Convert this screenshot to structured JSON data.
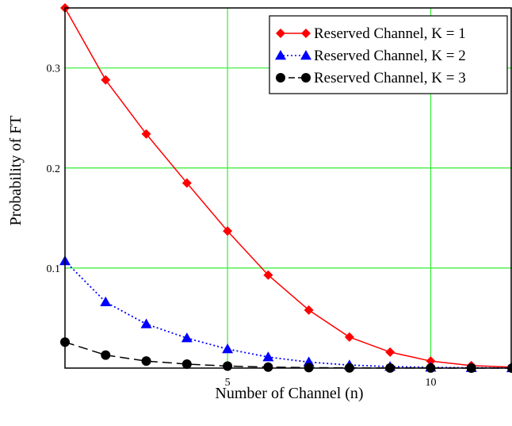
{
  "chart_data": {
    "type": "line",
    "xlabel": "Number of Channel (n)",
    "ylabel": "Probability of FT",
    "xlim": [
      1,
      12
    ],
    "ylim": [
      0,
      0.36
    ],
    "x_ticks": [
      5,
      10
    ],
    "x_tick_labels": [
      "5",
      "10"
    ],
    "y_ticks": [
      0.1,
      0.2,
      0.3
    ],
    "y_tick_labels": [
      "0.1",
      "0.2",
      "0.3"
    ],
    "grid": true,
    "grid_color": "#33ee33",
    "legend_position": "top-right",
    "x": [
      1,
      2,
      3,
      4,
      5,
      6,
      7,
      8,
      9,
      10,
      11,
      12
    ],
    "series": [
      {
        "name": "Reserved Channel, K = 1",
        "color": "#ff0000",
        "line_style": "solid",
        "marker": "diamond",
        "values": [
          0.36,
          0.288,
          0.234,
          0.185,
          0.137,
          0.093,
          0.058,
          0.031,
          0.016,
          0.007,
          0.0025,
          0.001
        ]
      },
      {
        "name": "Reserved Channel, K = 2",
        "color": "#0000ff",
        "line_style": "dotted",
        "marker": "triangle",
        "values": [
          0.107,
          0.066,
          0.044,
          0.03,
          0.019,
          0.011,
          0.006,
          0.003,
          0.0015,
          0.0007,
          0.0003,
          0.0001
        ]
      },
      {
        "name": "Reserved Channel, K = 3",
        "color": "#000000",
        "line_style": "dashed",
        "marker": "circle",
        "values": [
          0.026,
          0.013,
          0.007,
          0.004,
          0.002,
          0.001,
          0.0005,
          0.0002,
          0.0001,
          5e-05,
          2e-05,
          1e-05
        ]
      }
    ]
  }
}
